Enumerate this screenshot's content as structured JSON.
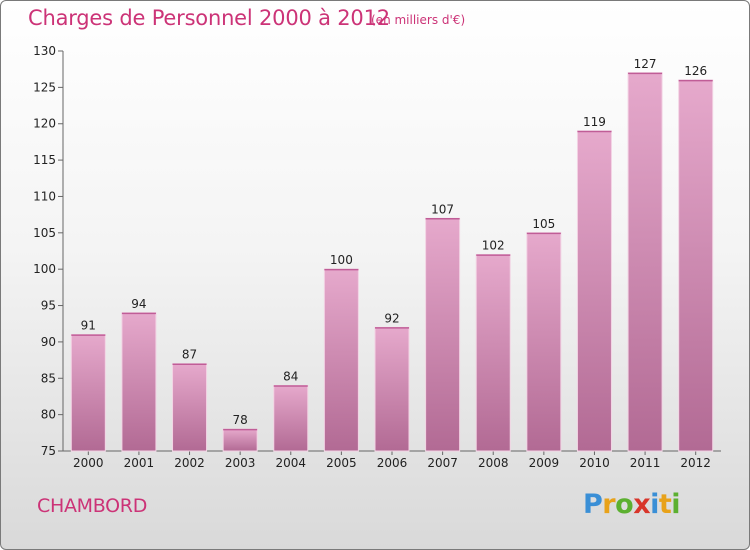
{
  "header": {
    "title": "Charges de Personnel 2000 à 2012",
    "subtitle": "(en milliers d'€)"
  },
  "footer": {
    "commune": "CHAMBORD",
    "logo_letters": [
      "P",
      "r",
      "o",
      "x",
      "i",
      "t",
      "i"
    ],
    "logo_colors": [
      "#3a8fd6",
      "#e8a21a",
      "#5cb030",
      "#d8352a",
      "#3a8fd6",
      "#e8a21a",
      "#5cb030"
    ]
  },
  "colors": {
    "bar_top": "#e6a9cc",
    "bar_bottom": "#b26a94",
    "accent": "#cc3377"
  },
  "chart_data": {
    "type": "bar",
    "title": "Charges de Personnel 2000 à 2012",
    "subtitle": "(en milliers d'€)",
    "categories": [
      "2000",
      "2001",
      "2002",
      "2003",
      "2004",
      "2005",
      "2006",
      "2007",
      "2008",
      "2009",
      "2010",
      "2011",
      "2012"
    ],
    "values": [
      91,
      94,
      87,
      78,
      84,
      100,
      92,
      107,
      102,
      105,
      119,
      127,
      126
    ],
    "ylim": [
      75,
      130
    ],
    "yticks": [
      75,
      80,
      85,
      90,
      95,
      100,
      105,
      110,
      115,
      120,
      125,
      130
    ],
    "grid": false,
    "legend": "none"
  }
}
